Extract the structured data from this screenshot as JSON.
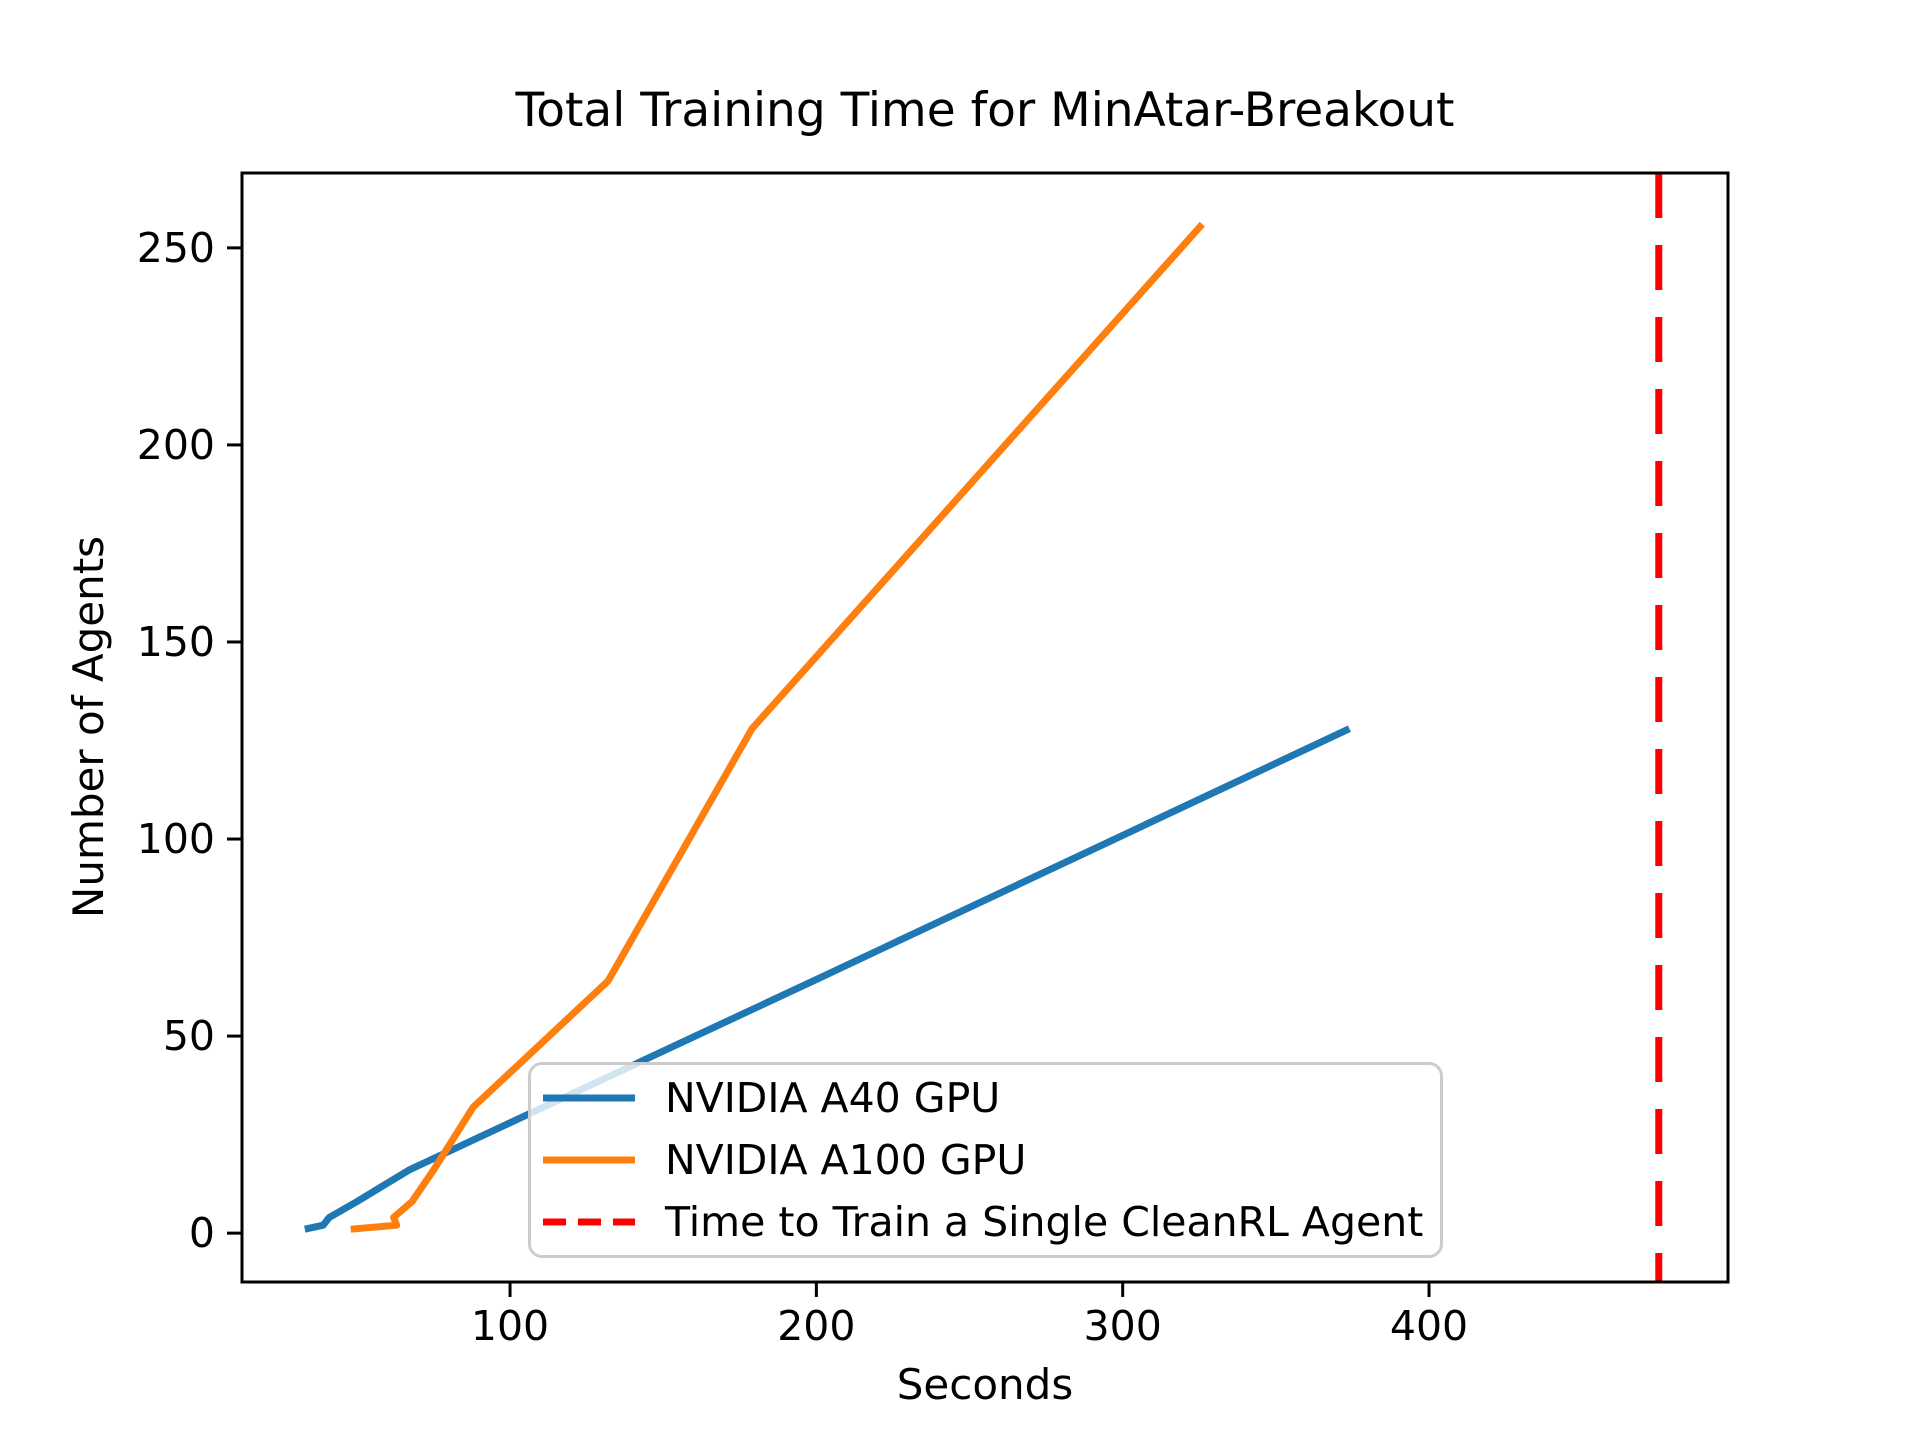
{
  "chart_data": {
    "type": "line",
    "title": "Total Training Time for MinAtar-Breakout",
    "xlabel": "Seconds",
    "ylabel": "Number of Agents",
    "xlim": [
      12.5,
      497.6
    ],
    "ylim": [
      -12.4,
      269.0
    ],
    "x_ticks": [
      100,
      200,
      300,
      400
    ],
    "y_ticks": [
      0,
      50,
      100,
      150,
      200,
      250
    ],
    "grid": false,
    "legend_position": "lower center inside axes",
    "series": [
      {
        "name": "NVIDIA A40 GPU",
        "color": "#1f77b4",
        "style": "solid",
        "x": [
          33,
          39,
          41,
          50,
          67,
          111,
          199,
          374
        ],
        "y": [
          1,
          2,
          4,
          8,
          16,
          32,
          64,
          128
        ]
      },
      {
        "name": "NVIDIA A100 GPU",
        "color": "#ff7f0e",
        "style": "solid",
        "x": [
          48,
          63,
          62,
          68,
          75,
          88,
          132,
          179,
          326
        ],
        "y": [
          1,
          2,
          4,
          8,
          16,
          32,
          64,
          128,
          256
        ]
      }
    ],
    "vline": {
      "label": "Time to Train a Single CleanRL Agent",
      "x": 475,
      "color": "#ff0000",
      "style": "dashed"
    },
    "axis_color": "#000000",
    "legend_border_color": "#cccccc"
  }
}
